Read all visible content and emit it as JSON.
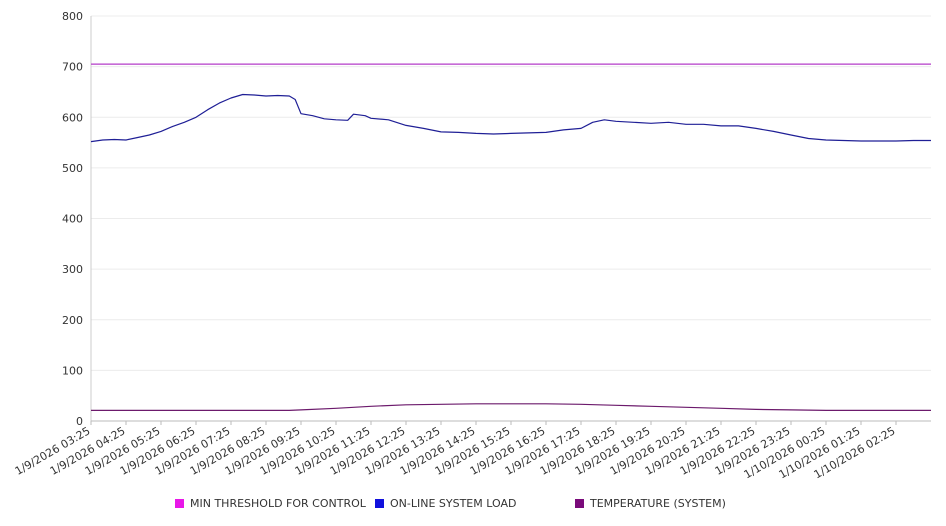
{
  "chart_data": {
    "type": "line",
    "ylim": [
      0,
      800
    ],
    "yticks": [
      0,
      100,
      200,
      300,
      400,
      500,
      600,
      700,
      800
    ],
    "xrange": [
      "2026-01-09T03:25",
      "2026-01-10T03:25"
    ],
    "x_tick_labels": [
      "1/9/2026 03:25",
      "1/9/2026 04:25",
      "1/9/2026 05:25",
      "1/9/2026 06:25",
      "1/9/2026 07:25",
      "1/9/2026 08:25",
      "1/9/2026 09:25",
      "1/9/2026 10:25",
      "1/9/2026 11:25",
      "1/9/2026 12:25",
      "1/9/2026 13:25",
      "1/9/2026 14:25",
      "1/9/2026 15:25",
      "1/9/2026 16:25",
      "1/9/2026 17:25",
      "1/9/2026 18:25",
      "1/9/2026 19:25",
      "1/9/2026 20:25",
      "1/9/2026 21:25",
      "1/9/2026 22:25",
      "1/9/2026 23:25",
      "1/10/2026 00:25",
      "1/10/2026 01:25",
      "1/10/2026 02:25"
    ],
    "grid": "horizontal",
    "legend_position": "bottom",
    "series": [
      {
        "name": "MIN THRESHOLD FOR CONTROL",
        "color": "#e817e8",
        "line_color": "#b43cc8",
        "points": [
          [
            "2026-01-09T03:25",
            705
          ],
          [
            "2026-01-10T03:25",
            705
          ]
        ]
      },
      {
        "name": "ON-LINE SYSTEM LOAD",
        "color": "#1111dd",
        "line_color": "#1f1f96",
        "points": [
          [
            "2026-01-09T03:25",
            552
          ],
          [
            "2026-01-09T03:45",
            555
          ],
          [
            "2026-01-09T04:05",
            556
          ],
          [
            "2026-01-09T04:25",
            555
          ],
          [
            "2026-01-09T04:45",
            560
          ],
          [
            "2026-01-09T05:05",
            565
          ],
          [
            "2026-01-09T05:25",
            572
          ],
          [
            "2026-01-09T05:45",
            582
          ],
          [
            "2026-01-09T06:05",
            590
          ],
          [
            "2026-01-09T06:25",
            600
          ],
          [
            "2026-01-09T06:45",
            615
          ],
          [
            "2026-01-09T07:05",
            628
          ],
          [
            "2026-01-09T07:25",
            638
          ],
          [
            "2026-01-09T07:45",
            645
          ],
          [
            "2026-01-09T08:05",
            644
          ],
          [
            "2026-01-09T08:25",
            642
          ],
          [
            "2026-01-09T08:45",
            643
          ],
          [
            "2026-01-09T09:05",
            642
          ],
          [
            "2026-01-09T09:15",
            635
          ],
          [
            "2026-01-09T09:25",
            607
          ],
          [
            "2026-01-09T09:45",
            603
          ],
          [
            "2026-01-09T10:05",
            597
          ],
          [
            "2026-01-09T10:25",
            595
          ],
          [
            "2026-01-09T10:45",
            594
          ],
          [
            "2026-01-09T10:55",
            606
          ],
          [
            "2026-01-09T11:15",
            603
          ],
          [
            "2026-01-09T11:25",
            598
          ],
          [
            "2026-01-09T11:55",
            595
          ],
          [
            "2026-01-09T12:25",
            584
          ],
          [
            "2026-01-09T12:55",
            578
          ],
          [
            "2026-01-09T13:25",
            571
          ],
          [
            "2026-01-09T13:55",
            570
          ],
          [
            "2026-01-09T14:25",
            568
          ],
          [
            "2026-01-09T14:55",
            567
          ],
          [
            "2026-01-09T15:25",
            568
          ],
          [
            "2026-01-09T15:55",
            569
          ],
          [
            "2026-01-09T16:25",
            570
          ],
          [
            "2026-01-09T16:55",
            575
          ],
          [
            "2026-01-09T17:25",
            578
          ],
          [
            "2026-01-09T17:45",
            590
          ],
          [
            "2026-01-09T18:05",
            595
          ],
          [
            "2026-01-09T18:25",
            592
          ],
          [
            "2026-01-09T18:55",
            590
          ],
          [
            "2026-01-09T19:25",
            588
          ],
          [
            "2026-01-09T19:55",
            590
          ],
          [
            "2026-01-09T20:25",
            586
          ],
          [
            "2026-01-09T20:55",
            586
          ],
          [
            "2026-01-09T21:25",
            583
          ],
          [
            "2026-01-09T21:55",
            583
          ],
          [
            "2026-01-09T22:25",
            578
          ],
          [
            "2026-01-09T22:55",
            572
          ],
          [
            "2026-01-09T23:25",
            565
          ],
          [
            "2026-01-09T23:55",
            558
          ],
          [
            "2026-01-10T00:25",
            555
          ],
          [
            "2026-01-10T00:55",
            554
          ],
          [
            "2026-01-10T01:25",
            553
          ],
          [
            "2026-01-10T01:55",
            553
          ],
          [
            "2026-01-10T02:25",
            553
          ],
          [
            "2026-01-10T02:55",
            554
          ],
          [
            "2026-01-10T03:25",
            554
          ]
        ]
      },
      {
        "name": "TEMPERATURE (SYSTEM)",
        "color": "#7a0a7a",
        "line_color": "#6c1a6c",
        "points": [
          [
            "2026-01-09T03:25",
            21
          ],
          [
            "2026-01-09T09:05",
            21
          ],
          [
            "2026-01-09T09:25",
            22
          ],
          [
            "2026-01-09T10:25",
            25
          ],
          [
            "2026-01-09T11:25",
            29
          ],
          [
            "2026-01-09T12:25",
            32
          ],
          [
            "2026-01-09T13:25",
            33
          ],
          [
            "2026-01-09T14:25",
            34
          ],
          [
            "2026-01-09T16:25",
            34
          ],
          [
            "2026-01-09T17:25",
            33
          ],
          [
            "2026-01-09T18:25",
            31
          ],
          [
            "2026-01-09T19:25",
            29
          ],
          [
            "2026-01-09T20:25",
            27
          ],
          [
            "2026-01-09T21:25",
            25
          ],
          [
            "2026-01-09T22:25",
            23
          ],
          [
            "2026-01-09T23:25",
            22
          ],
          [
            "2026-01-10T00:25",
            21
          ],
          [
            "2026-01-10T03:25",
            21
          ]
        ]
      }
    ]
  }
}
